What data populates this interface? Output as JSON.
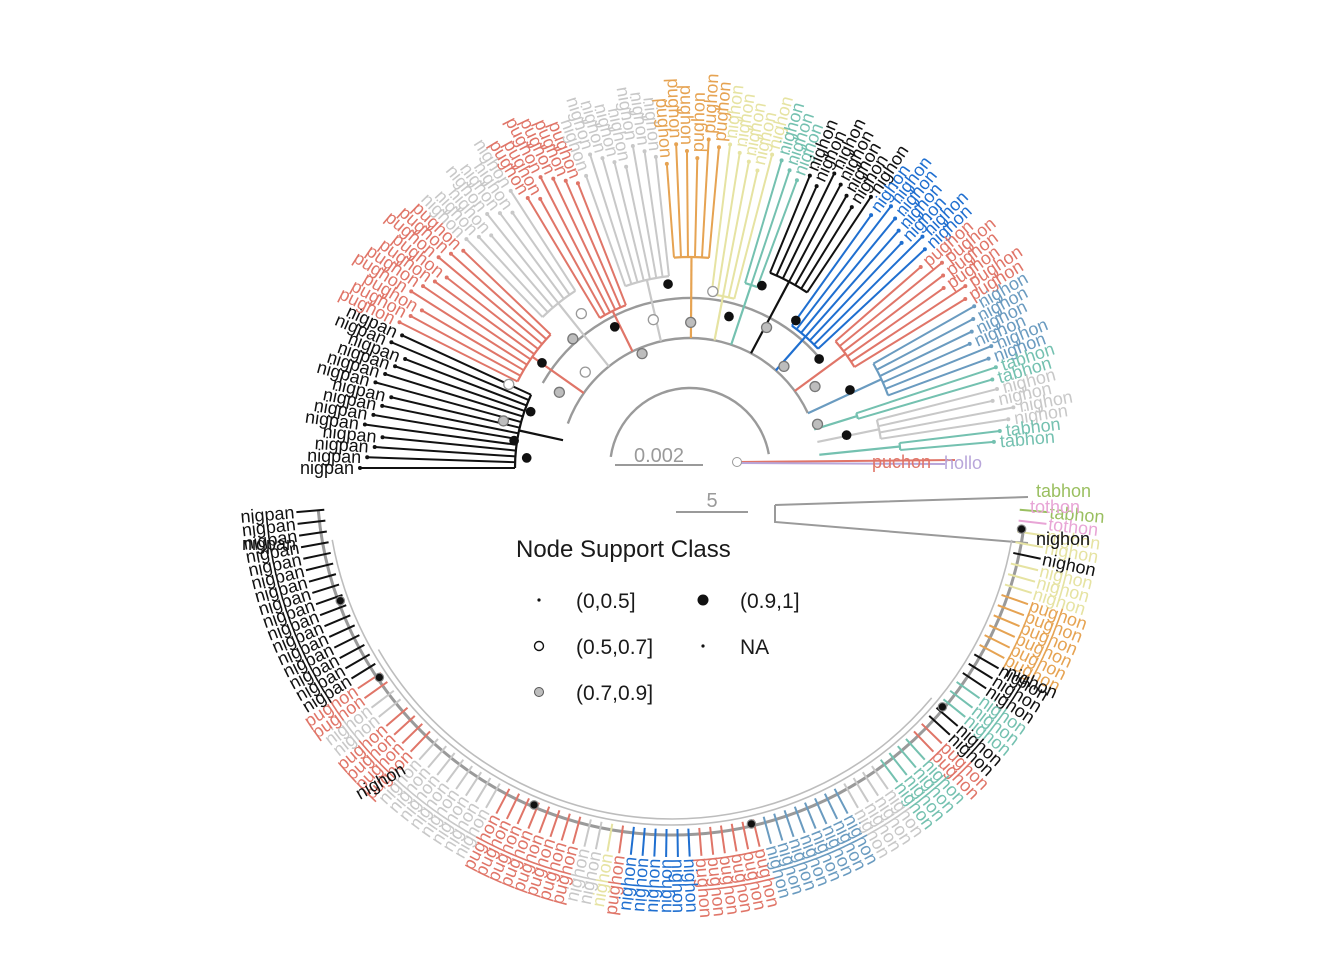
{
  "colors": {
    "nighon": "#111111",
    "nigpan": "#111111",
    "pughon": "#e07568",
    "puchon": "#e07568",
    "grey": "#c8c8c8",
    "orange": "#e6a352",
    "yellow": "#e6e3a2",
    "teal": "#74c1b0",
    "blue": "#1f6fd0",
    "steel": "#6a9bc0",
    "tabhon": "#9abf60",
    "pink": "#e8a5d6",
    "lilac": "#b8a6da",
    "trunk": "#9a9a9a"
  },
  "top_tree": {
    "scale_bar_label": "0.002",
    "clades": [
      {
        "color": "#111111",
        "n": 14,
        "label": "nigpan"
      },
      {
        "color": "#e07568",
        "n": 10,
        "label": "pughon"
      },
      {
        "color": "#c8c8c8",
        "n": 7,
        "label": "nighon"
      },
      {
        "color": "#e07568",
        "n": 6,
        "label": "pughon"
      },
      {
        "color": "#c8c8c8",
        "n": 8,
        "label": "nighon"
      },
      {
        "color": "#e6a352",
        "n": 6,
        "label": "pughon"
      },
      {
        "color": "#e6e3a2",
        "n": 5,
        "label": "nighon"
      },
      {
        "color": "#74c1b0",
        "n": 3,
        "label": "nighon"
      },
      {
        "color": "#111111",
        "n": 7,
        "label": "nighon"
      },
      {
        "color": "#1f6fd0",
        "n": 7,
        "label": "nighon"
      },
      {
        "color": "#e07568",
        "n": 6,
        "label": "pughon"
      },
      {
        "color": "#6a9bc0",
        "n": 6,
        "label": "nighon"
      },
      {
        "color": "#74c1b0",
        "n": 2,
        "label": "tabhon"
      },
      {
        "color": "#c8c8c8",
        "n": 4,
        "label": "nighon"
      },
      {
        "color": "#74c1b0",
        "n": 2,
        "label": "tabhon"
      }
    ],
    "outgroups": [
      {
        "label": "puchon",
        "color": "#e07568"
      },
      {
        "label": "hollo",
        "color": "#b8a6da"
      }
    ],
    "support_nodes": [
      {
        "f": 0.02,
        "r": 0.52,
        "class": "(0.9,1]"
      },
      {
        "f": 0.05,
        "r": 0.6,
        "class": "(0.9,1]"
      },
      {
        "f": 0.08,
        "r": 0.68,
        "class": "(0.7,0.9]"
      },
      {
        "f": 0.11,
        "r": 0.55,
        "class": "(0.9,1]"
      },
      {
        "f": 0.14,
        "r": 0.72,
        "class": "(0.5,0.7]"
      },
      {
        "f": 0.17,
        "r": 0.45,
        "class": "(0.7,0.9]"
      },
      {
        "f": 0.2,
        "r": 0.62,
        "class": "(0.9,1]"
      },
      {
        "f": 0.24,
        "r": 0.4,
        "class": "(0.5,0.7]"
      },
      {
        "f": 0.27,
        "r": 0.58,
        "class": "(0.7,0.9]"
      },
      {
        "f": 0.31,
        "r": 0.66,
        "class": "(0.5,0.7]"
      },
      {
        "f": 0.35,
        "r": 0.5,
        "class": "(0.9,1]"
      },
      {
        "f": 0.38,
        "r": 0.3,
        "class": "(0.7,0.9]"
      },
      {
        "f": 0.43,
        "r": 0.46,
        "class": "(0.5,0.7]"
      },
      {
        "f": 0.47,
        "r": 0.64,
        "class": "(0.9,1]"
      },
      {
        "f": 0.51,
        "r": 0.42,
        "class": "(0.7,0.9]"
      },
      {
        "f": 0.55,
        "r": 0.6,
        "class": "(0.5,0.7]"
      },
      {
        "f": 0.59,
        "r": 0.48,
        "class": "(0.9,1]"
      },
      {
        "f": 0.63,
        "r": 0.7,
        "class": "(0.9,1]"
      },
      {
        "f": 0.67,
        "r": 0.5,
        "class": "(0.7,0.9]"
      },
      {
        "f": 0.71,
        "r": 0.62,
        "class": "(0.9,1]"
      },
      {
        "f": 0.75,
        "r": 0.38,
        "class": "(0.7,0.9]"
      },
      {
        "f": 0.79,
        "r": 0.55,
        "class": "(0.9,1]"
      },
      {
        "f": 0.83,
        "r": 0.44,
        "class": "(0.7,0.9]"
      },
      {
        "f": 0.87,
        "r": 0.6,
        "class": "(0.9,1]"
      },
      {
        "f": 0.91,
        "r": 0.36,
        "class": "(0.7,0.9]"
      },
      {
        "f": 0.95,
        "r": 0.5,
        "class": "(0.9,1]"
      }
    ]
  },
  "bottom_tree": {
    "scale_bar_label": "5",
    "clades": [
      {
        "color": "#9abf60",
        "n": 1,
        "label": "tabhon"
      },
      {
        "color": "#e8a5d6",
        "n": 1,
        "label": "tothon"
      },
      {
        "color": "#e6e3a2",
        "n": 2,
        "label": "nighon"
      },
      {
        "color": "#111111",
        "n": 1,
        "label": "nighon"
      },
      {
        "color": "#e6e3a2",
        "n": 3,
        "label": "nighon"
      },
      {
        "color": "#e6a352",
        "n": 6,
        "label": "pughon"
      },
      {
        "color": "#111111",
        "n": 3,
        "label": "nighon"
      },
      {
        "color": "#74c1b0",
        "n": 3,
        "label": "nighon"
      },
      {
        "color": "#111111",
        "n": 2,
        "label": "nighon"
      },
      {
        "color": "#e07568",
        "n": 2,
        "label": "pughon"
      },
      {
        "color": "#74c1b0",
        "n": 4,
        "label": "nighon"
      },
      {
        "color": "#c8c8c8",
        "n": 4,
        "label": "nighon"
      },
      {
        "color": "#6a9bc0",
        "n": 8,
        "label": "nighon"
      },
      {
        "color": "#e07568",
        "n": 6,
        "label": "pughon"
      },
      {
        "color": "#1f6fd0",
        "n": 6,
        "label": "nighon"
      },
      {
        "color": "#e07568",
        "n": 1,
        "label": "pughon"
      },
      {
        "color": "#e6e3a2",
        "n": 1,
        "label": "nighon"
      },
      {
        "color": "#c8c8c8",
        "n": 2,
        "label": "nighon"
      },
      {
        "color": "#e07568",
        "n": 8,
        "label": "pughon"
      },
      {
        "color": "#c8c8c8",
        "n": 8,
        "label": "nighon"
      },
      {
        "color": "#e07568",
        "n": 4,
        "label": "pughon"
      },
      {
        "color": "#c8c8c8",
        "n": 2,
        "label": "nighon"
      },
      {
        "color": "#e07568",
        "n": 2,
        "label": "pughon"
      },
      {
        "color": "#111111",
        "n": 16,
        "label": "nigpan"
      }
    ],
    "visible_labels": [
      {
        "text": "tabhon",
        "color": "#9abf60"
      },
      {
        "text": "tothon",
        "color": "#e8a5d6"
      },
      {
        "text": "nighon",
        "color": "#111111"
      },
      {
        "text": "nigpan",
        "color": "#111111"
      },
      {
        "text": "nighon",
        "color": "#111111"
      },
      {
        "text": "nighon",
        "color": "#111111"
      }
    ],
    "support_nodes": [
      {
        "class": "(0.9,1]"
      },
      {
        "class": "(0.9,1]"
      },
      {
        "class": "(0.9,1]"
      },
      {
        "class": "(0.9,1]"
      },
      {
        "class": "(0.9,1]"
      },
      {
        "class": "(0.9,1]"
      }
    ]
  },
  "legend": {
    "title": "Node Support Class",
    "items": [
      {
        "label": "(0,0.5]",
        "symbol": "tiny-dot"
      },
      {
        "label": "(0.9,1]",
        "symbol": "black-dot"
      },
      {
        "label": "(0.5,0.7]",
        "symbol": "open-dot"
      },
      {
        "label": "NA",
        "symbol": "tiny-dot"
      },
      {
        "label": "(0.7,0.9]",
        "symbol": "grey-dot"
      }
    ]
  }
}
